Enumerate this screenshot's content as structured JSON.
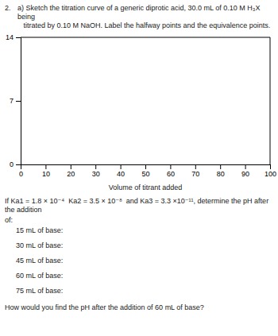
{
  "chart_data": {
    "type": "line",
    "title": "a) Sketch the titration curve of a generic diprotic acid, 30.0 mL of 0.10 M H₃X being\n   titrated by 0.10 M NaOH. Label the halfway points and the equivalence points.",
    "x_label": "Volume of titrant added",
    "xlim": [
      0,
      100
    ],
    "ylim": [
      0,
      14
    ],
    "xticks": [
      0,
      10,
      20,
      30,
      40,
      50,
      60,
      70,
      80,
      90,
      100
    ],
    "yticks": [
      0,
      7,
      14
    ],
    "grid": false,
    "annotations": [
      "2.",
      "If Ka1 = 1.8 × 10⁻⁴  Ka2 = 3.5 × 10⁻⁸  and Ka3 = 3.3 ×10⁻¹¹, determine the pH after the addition",
      "of:",
      "15 mL of base:",
      "30 mL of base:",
      "45 mL of base:",
      "60 mL of base:",
      "75 mL of base:",
      "How would you find the pH after the addition of 60 mL of base?"
    ]
  }
}
